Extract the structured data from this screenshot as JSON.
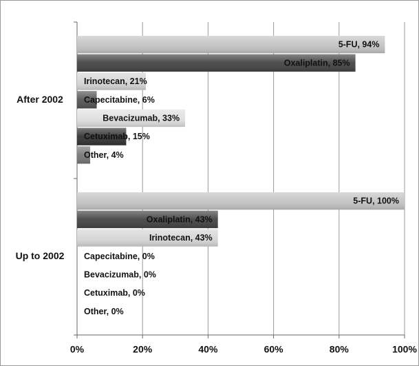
{
  "chart_data": {
    "type": "bar",
    "orientation": "horizontal",
    "categories": [
      "After 2002",
      "Up to 2002"
    ],
    "series": [
      {
        "color": "#c4c4c4",
        "values": [
          94,
          100
        ],
        "value_labels": [
          "5-FU, 94%",
          "5-FU, 100%"
        ]
      },
      {
        "color": "#444444",
        "values": [
          85,
          43
        ],
        "value_labels": [
          "Oxaliplatin, 85%",
          "Oxaliplatin, 43%"
        ]
      },
      {
        "color": "#d6d6d6",
        "values": [
          21,
          43
        ],
        "value_labels": [
          "Irinotecan, 21%",
          "Irinotecan, 43%"
        ]
      },
      {
        "color": "#555555",
        "values": [
          6,
          0
        ],
        "value_labels": [
          "Capecitabine, 6%",
          "Capecitabine, 0%"
        ]
      },
      {
        "color": "#e0e0e0",
        "values": [
          33,
          0
        ],
        "value_labels": [
          "Bevacizumab, 33%",
          "Bevacizumab, 0%"
        ]
      },
      {
        "color": "#333333",
        "values": [
          15,
          0
        ],
        "value_labels": [
          "Cetuximab, 15%",
          "Cetuximab, 0%"
        ]
      },
      {
        "color": "#777777",
        "values": [
          4,
          0
        ],
        "value_labels": [
          "Other, 4%",
          "Other, 0%"
        ]
      }
    ],
    "xlim": [
      0,
      100
    ],
    "xticks": [
      {
        "value": 0,
        "label": "0%"
      },
      {
        "value": 20,
        "label": "20%"
      },
      {
        "value": 40,
        "label": "40%"
      },
      {
        "value": 60,
        "label": "60%"
      },
      {
        "value": 80,
        "label": "80%"
      },
      {
        "value": 100,
        "label": "100%"
      }
    ],
    "grid": true
  }
}
